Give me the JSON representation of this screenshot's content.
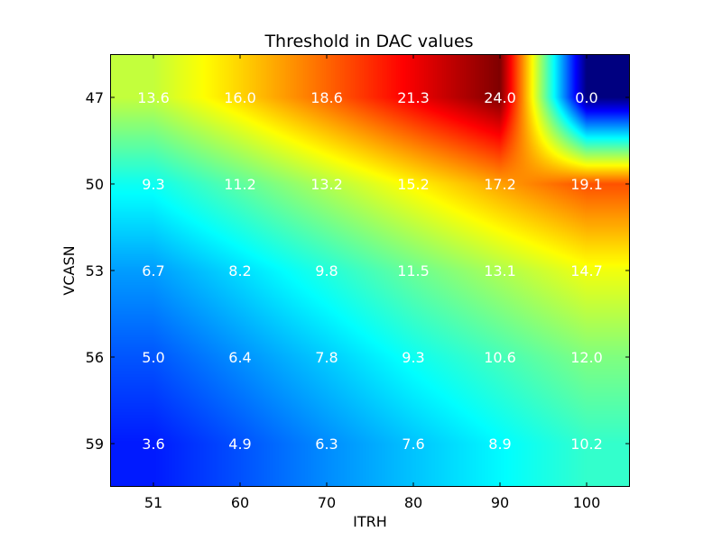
{
  "chart_data": {
    "type": "heatmap",
    "title": "Threshold in DAC values",
    "xlabel": "ITRH",
    "ylabel": "VCASN",
    "x_categories": [
      "51",
      "60",
      "70",
      "80",
      "90",
      "100"
    ],
    "y_categories": [
      "47",
      "50",
      "53",
      "56",
      "59"
    ],
    "values": [
      [
        13.6,
        16.0,
        18.6,
        21.3,
        24.0,
        0.0
      ],
      [
        9.3,
        11.2,
        13.2,
        15.2,
        17.2,
        19.1
      ],
      [
        6.7,
        8.2,
        9.8,
        11.5,
        13.1,
        14.7
      ],
      [
        5.0,
        6.4,
        7.8,
        9.3,
        10.6,
        12.0
      ],
      [
        3.6,
        4.9,
        6.3,
        7.6,
        8.9,
        10.2
      ]
    ],
    "value_labels": [
      [
        "13.6",
        "16.0",
        "18.6",
        "21.3",
        "24.0",
        "0.0"
      ],
      [
        "9.3",
        "11.2",
        "13.2",
        "15.2",
        "17.2",
        "19.1"
      ],
      [
        "6.7",
        "8.2",
        "9.8",
        "11.5",
        "13.1",
        "14.7"
      ],
      [
        "5.0",
        "6.4",
        "7.8",
        "9.3",
        "10.6",
        "12.0"
      ],
      [
        "3.6",
        "4.9",
        "6.3",
        "7.6",
        "8.9",
        "10.2"
      ]
    ],
    "colormap": "jet",
    "color_range": [
      0,
      24
    ],
    "interpolation": "smooth",
    "grid": false,
    "legend": "none"
  }
}
